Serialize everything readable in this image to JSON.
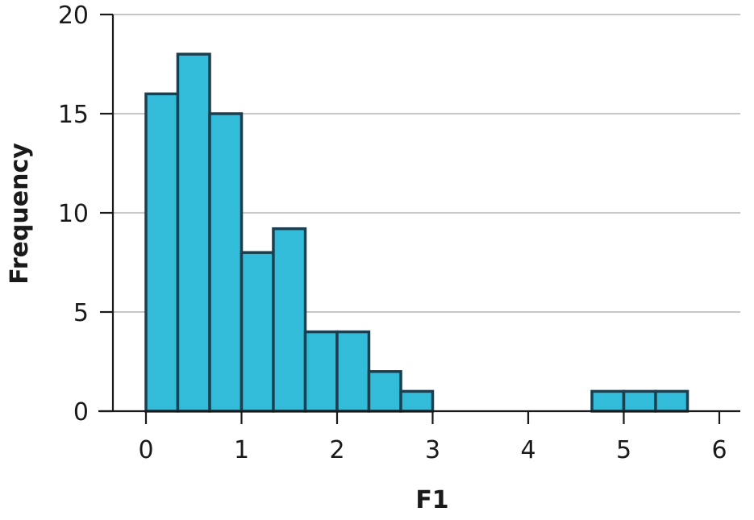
{
  "chart_data": {
    "type": "bar",
    "title": "",
    "xlabel": "F1",
    "ylabel": "Frequency",
    "xlim": [
      -0.35,
      6.25
    ],
    "ylim": [
      0,
      20
    ],
    "xticks": [
      0,
      1,
      2,
      3,
      4,
      5,
      6
    ],
    "yticks": [
      0,
      5,
      10,
      15,
      20
    ],
    "grid": "horizontal",
    "bin_width": 0.333,
    "bins": [
      {
        "start": 0.0,
        "end": 0.333,
        "value": 16
      },
      {
        "start": 0.333,
        "end": 0.667,
        "value": 18
      },
      {
        "start": 0.667,
        "end": 1.0,
        "value": 15
      },
      {
        "start": 1.0,
        "end": 1.333,
        "value": 8
      },
      {
        "start": 1.333,
        "end": 1.667,
        "value": 9.2
      },
      {
        "start": 1.667,
        "end": 2.0,
        "value": 4
      },
      {
        "start": 2.0,
        "end": 2.333,
        "value": 4
      },
      {
        "start": 2.333,
        "end": 2.667,
        "value": 2
      },
      {
        "start": 2.667,
        "end": 3.0,
        "value": 1
      },
      {
        "start": 4.667,
        "end": 5.0,
        "value": 1
      },
      {
        "start": 5.0,
        "end": 5.333,
        "value": 1
      },
      {
        "start": 5.333,
        "end": 5.667,
        "value": 1
      }
    ],
    "colors": {
      "bar_fill": "#33bcd9",
      "bar_stroke": "#1b3f4f"
    }
  }
}
